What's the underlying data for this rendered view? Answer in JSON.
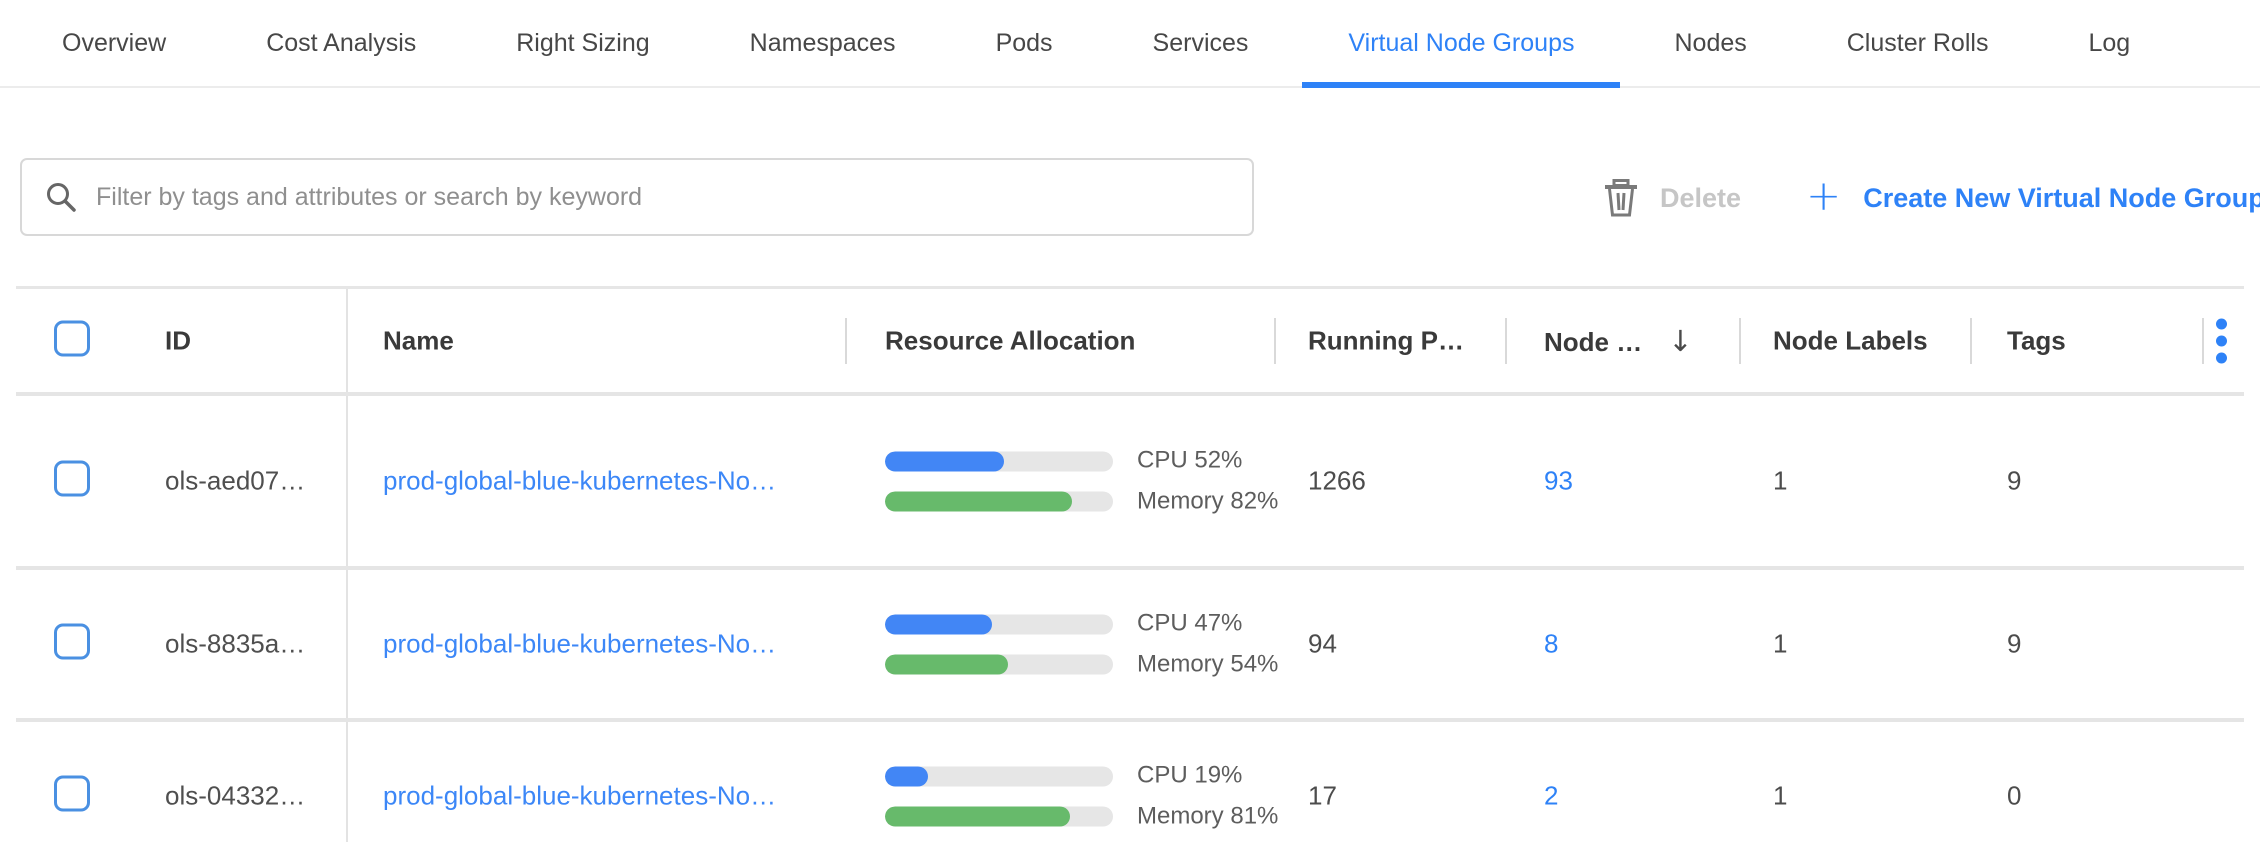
{
  "colors": {
    "accent": "#2e82f7",
    "link": "#3c87f7",
    "cpu_bar": "#4286f5",
    "memory_bar": "#67ba6b",
    "bar_track": "#e6e6e6",
    "checkbox_border": "#4a90e2"
  },
  "tabs": {
    "items": [
      "Overview",
      "Cost Analysis",
      "Right Sizing",
      "Namespaces",
      "Pods",
      "Services",
      "Virtual Node Groups",
      "Nodes",
      "Cluster Rolls",
      "Log"
    ],
    "active": "Virtual Node Groups"
  },
  "toolbar": {
    "search_placeholder": "Filter by tags and attributes or search by keyword",
    "delete_label": "Delete",
    "create_label": "Create New Virtual Node Group"
  },
  "table": {
    "columns": {
      "id": "ID",
      "name": "Name",
      "resource": "Resource Allocation",
      "running_pods": "Running P…",
      "nodes": "Node …",
      "node_labels": "Node Labels",
      "tags": "Tags"
    },
    "sort": {
      "column": "nodes",
      "direction": "desc",
      "arrow": "↓"
    },
    "rows": [
      {
        "id": "ols-aed07…",
        "name": "prod-global-blue-kubernetes-No…",
        "cpu_pct": 52,
        "memory_pct": 82,
        "cpu_label": "CPU 52%",
        "memory_label": "Memory 82%",
        "running_pods": "1266",
        "nodes": "93",
        "node_labels": "1",
        "tags": "9"
      },
      {
        "id": "ols-8835a…",
        "name": "prod-global-blue-kubernetes-No…",
        "cpu_pct": 47,
        "memory_pct": 54,
        "cpu_label": "CPU 47%",
        "memory_label": "Memory 54%",
        "running_pods": "94",
        "nodes": "8",
        "node_labels": "1",
        "tags": "9"
      },
      {
        "id": "ols-04332…",
        "name": "prod-global-blue-kubernetes-No…",
        "cpu_pct": 19,
        "memory_pct": 81,
        "cpu_label": "CPU 19%",
        "memory_label": "Memory 81%",
        "running_pods": "17",
        "nodes": "2",
        "node_labels": "1",
        "tags": "0"
      }
    ]
  }
}
